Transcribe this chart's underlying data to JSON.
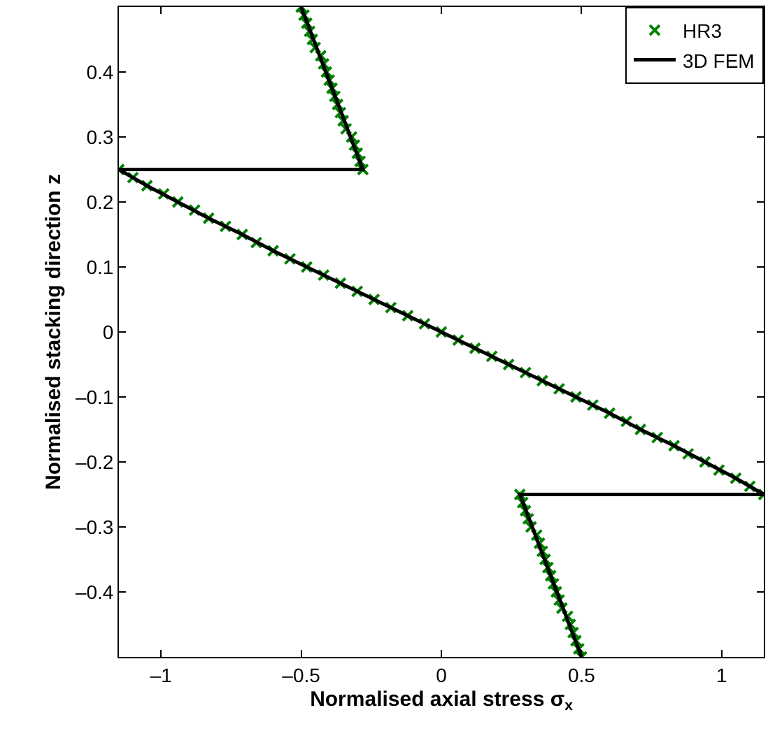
{
  "chart_data": {
    "type": "line",
    "xlabel": "Normalised axial stress σ$_{x}$",
    "ylabel": "Normalised stacking direction z",
    "xlim": [
      -1.15,
      1.15
    ],
    "ylim": [
      -0.5,
      0.5
    ],
    "xticks": [
      {
        "value": -1,
        "label": "–1"
      },
      {
        "value": -0.5,
        "label": "–0.5"
      },
      0,
      0.5,
      1
    ],
    "yticks": [
      {
        "value": -0.4,
        "label": "–0.4"
      },
      {
        "value": -0.3,
        "label": "–0.3"
      },
      {
        "value": -0.2,
        "label": "–0.2"
      },
      {
        "value": -0.1,
        "label": "–0.1"
      },
      0,
      0.1,
      0.2,
      0.3,
      0.4
    ],
    "legend": "top right",
    "series": [
      {
        "name": "HR3",
        "type": "scatter",
        "marker": "cross",
        "color": "#008000",
        "x": [
          -0.5,
          -0.49,
          -0.48,
          -0.47,
          -0.46,
          -0.45,
          -0.43,
          -0.42,
          -0.41,
          -0.4,
          -0.39,
          -0.38,
          -0.37,
          -0.36,
          -0.35,
          -0.34,
          -0.32,
          -0.31,
          -0.3,
          -0.29,
          -0.28,
          -1.15,
          -1.1,
          -1.05,
          -0.99,
          -0.94,
          -0.88,
          -0.83,
          -0.77,
          -0.71,
          -0.66,
          -0.6,
          -0.54,
          -0.48,
          -0.42,
          -0.36,
          -0.3,
          -0.24,
          -0.18,
          -0.12,
          -0.06,
          0,
          0.06,
          0.12,
          0.18,
          0.24,
          0.3,
          0.36,
          0.42,
          0.48,
          0.54,
          0.6,
          0.66,
          0.71,
          0.77,
          0.83,
          0.88,
          0.94,
          0.99,
          1.05,
          1.1,
          1.15,
          0.28,
          0.29,
          0.3,
          0.31,
          0.32,
          0.34,
          0.35,
          0.36,
          0.37,
          0.38,
          0.39,
          0.4,
          0.41,
          0.42,
          0.43,
          0.45,
          0.46,
          0.47,
          0.48,
          0.49,
          0.5
        ],
        "values": [
          0.5,
          0.4875,
          0.475,
          0.4625,
          0.45,
          0.4375,
          0.425,
          0.4125,
          0.4,
          0.3875,
          0.375,
          0.3625,
          0.35,
          0.3375,
          0.325,
          0.3125,
          0.3,
          0.2875,
          0.275,
          0.2625,
          0.25,
          0.25,
          0.2375,
          0.225,
          0.2125,
          0.2,
          0.1875,
          0.175,
          0.1625,
          0.15,
          0.1375,
          0.125,
          0.1125,
          0.1,
          0.0875,
          0.075,
          0.0625,
          0.05,
          0.0375,
          0.025,
          0.0125,
          0,
          -0.0125,
          -0.025,
          -0.0375,
          -0.05,
          -0.0625,
          -0.075,
          -0.0875,
          -0.1,
          -0.1125,
          -0.125,
          -0.1375,
          -0.15,
          -0.1625,
          -0.175,
          -0.1875,
          -0.2,
          -0.2125,
          -0.225,
          -0.2375,
          -0.25,
          -0.25,
          -0.2625,
          -0.275,
          -0.2875,
          -0.3,
          -0.3125,
          -0.325,
          -0.3375,
          -0.35,
          -0.3625,
          -0.375,
          -0.3875,
          -0.4,
          -0.4125,
          -0.425,
          -0.4375,
          -0.45,
          -0.4625,
          -0.475,
          -0.4875,
          -0.5
        ]
      },
      {
        "name": "3D FEM",
        "line_style": "solid",
        "color": "#000000",
        "x": [
          -0.5,
          -0.39,
          -0.28,
          -1.15,
          -1.05,
          -0.94,
          -0.83,
          -0.71,
          -0.6,
          -0.48,
          -0.36,
          -0.24,
          -0.12,
          0,
          0.12,
          0.24,
          0.36,
          0.48,
          0.6,
          0.71,
          0.83,
          0.94,
          1.05,
          1.15,
          0.28,
          0.39,
          0.5
        ],
        "values": [
          0.5,
          0.375,
          0.25,
          0.25,
          0.225,
          0.2,
          0.175,
          0.15,
          0.125,
          0.1,
          0.075,
          0.05,
          0.025,
          0,
          -0.025,
          -0.05,
          -0.075,
          -0.1,
          -0.125,
          -0.15,
          -0.175,
          -0.2,
          -0.225,
          -0.25,
          -0.25,
          -0.375,
          -0.5
        ]
      }
    ]
  }
}
